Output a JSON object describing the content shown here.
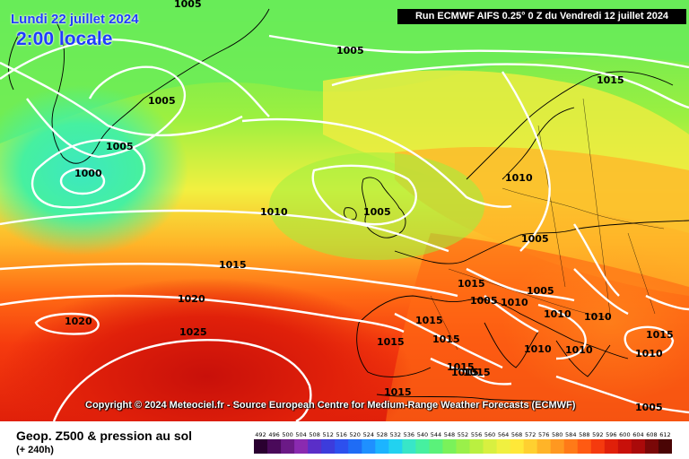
{
  "header": {
    "date": "Lundi 22 juillet 2024",
    "local_time": "2:00 locale",
    "run_info": "Run ECMWF AIFS 0.25° 0 Z du Vendredi 12 juillet 2024"
  },
  "map": {
    "copyright": "Copyright © 2024 Meteociel.fr - Source European Centre for Medium-Range Weather Forecasts (ECMWF)",
    "isobar_labels": [
      "1005",
      "1005",
      "1005",
      "1005",
      "1000",
      "1010",
      "1015",
      "1015",
      "1020",
      "1020",
      "1025",
      "1005",
      "1010",
      "1005",
      "1015",
      "1005",
      "1005",
      "1015",
      "1015",
      "1015",
      "1015",
      "1010",
      "1010",
      "1010",
      "1010",
      "1010",
      "1015",
      "1015",
      "1015",
      "1015",
      "1010",
      "1005"
    ],
    "contour_color": "#ffffff",
    "coast_color": "#000000"
  },
  "footer": {
    "title": "Geop. Z500 & pression au sol",
    "lead_time": "(+ 240h)"
  },
  "legend": {
    "values": [
      "492",
      "496",
      "500",
      "504",
      "508",
      "512",
      "516",
      "520",
      "524",
      "528",
      "532",
      "536",
      "540",
      "544",
      "548",
      "552",
      "556",
      "560",
      "564",
      "568",
      "572",
      "576",
      "580",
      "584",
      "588",
      "592",
      "596",
      "600",
      "604",
      "608",
      "612"
    ],
    "colors": [
      "#2a0030",
      "#4a0a5a",
      "#6b1a86",
      "#8a2ab0",
      "#5a2ec8",
      "#3c3cdc",
      "#2d50ee",
      "#1f6cf5",
      "#1f90ff",
      "#1cb4ff",
      "#22d2f0",
      "#38e6c8",
      "#46f0a0",
      "#5af27a",
      "#7af25a",
      "#9af04a",
      "#baf040",
      "#d8f040",
      "#f0f040",
      "#ffe838",
      "#ffd030",
      "#ffb428",
      "#ff9820",
      "#ff7a18",
      "#ff5a12",
      "#f53a0e",
      "#e0200a",
      "#c8100a",
      "#aa0a0a",
      "#7a0808",
      "#4a0505"
    ]
  }
}
